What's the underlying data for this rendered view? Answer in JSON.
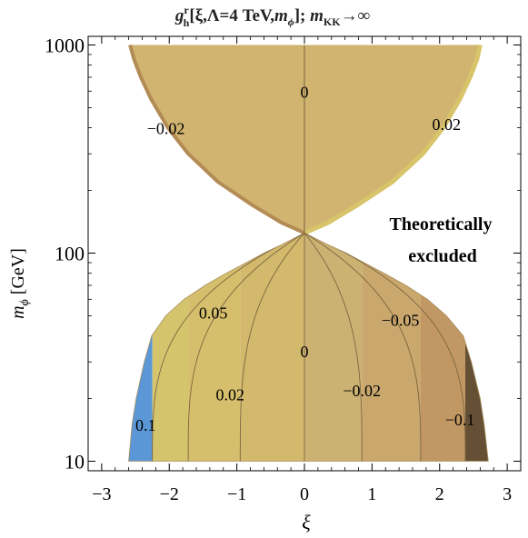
{
  "chart_data": {
    "type": "contour",
    "title": {
      "g": "g",
      "sup": "r",
      "sub": "h",
      "mid": "[ξ,Λ=4 TeV,",
      "m": "m",
      "phi": "ϕ",
      "end": "]; ",
      "m2": "m",
      "kk": "KK",
      "arrow": "→∞"
    },
    "xlabel": "ξ",
    "ylabel": {
      "m": "m",
      "sub": "ϕ",
      "unit": " [GeV]"
    },
    "x_ticks": [
      "−3",
      "−2",
      "−1",
      "0",
      "1",
      "2",
      "3"
    ],
    "y_ticks": [
      "10",
      "100",
      "1000"
    ],
    "xlim": [
      -3.2,
      3.2
    ],
    "ylim": [
      9,
      1100
    ],
    "y_scale": "log",
    "region_label": [
      "Theoretically",
      "excluded"
    ],
    "boundary_points": {
      "m": [
        10,
        15,
        20,
        30,
        40,
        50,
        60,
        70,
        80,
        90,
        100,
        110,
        125
      ],
      "xi_right": [
        2.72,
        2.66,
        2.6,
        2.47,
        2.35,
        2.1,
        1.82,
        1.5,
        1.18,
        0.88,
        0.62,
        0.34,
        0.0
      ],
      "xi_left": [
        -2.6,
        -2.55,
        -2.49,
        -2.37,
        -2.26,
        -2.05,
        -1.78,
        -1.47,
        -1.16,
        -0.86,
        -0.6,
        -0.33,
        0.0
      ],
      "m_upper": [
        125,
        140,
        170,
        220,
        300,
        400,
        550,
        700,
        850,
        1000
      ],
      "xi_upper_right": [
        0.0,
        0.35,
        0.78,
        1.3,
        1.75,
        2.05,
        2.3,
        2.45,
        2.55,
        2.6
      ],
      "xi_upper_left": [
        0.0,
        -0.34,
        -0.77,
        -1.28,
        -1.72,
        -2.02,
        -2.27,
        -2.42,
        -2.52,
        -2.58
      ]
    },
    "contour_bands": {
      "xi": [
        -2.6,
        -2.25,
        -1.72,
        -0.95,
        0.0,
        0.85,
        1.72,
        2.38,
        2.72
      ],
      "colors": [
        "#5b97d6",
        "#d4c56d",
        "#d6bf6c",
        "#d3b96c",
        "#ccb272",
        "#c9a76d",
        "#c19863",
        "#655036"
      ]
    },
    "contour_labels": [
      {
        "text": "0",
        "xi": 0.0,
        "m": 600
      },
      {
        "text": "−0.02",
        "xi": -2.05,
        "m": 400
      },
      {
        "text": "0.02",
        "xi": 2.1,
        "m": 420
      },
      {
        "text": "0.05",
        "xi": -1.35,
        "m": 52
      },
      {
        "text": "−0.05",
        "xi": 1.42,
        "m": 48
      },
      {
        "text": "0",
        "xi": 0.0,
        "m": 34
      },
      {
        "text": "0.02",
        "xi": -1.1,
        "m": 21
      },
      {
        "text": "−0.02",
        "xi": 0.85,
        "m": 22
      },
      {
        "text": "0.1",
        "xi": -2.35,
        "m": 15
      },
      {
        "text": "−0.1",
        "xi": 2.3,
        "m": 16
      }
    ],
    "grid": false,
    "legend": "none",
    "colors": {
      "upper_fill": "#d0b46f",
      "upper_edge_gold": "#d8c46a",
      "upper_edge_dark": "#b38b55",
      "contour_line": "#7c6540",
      "frame": "#000000"
    }
  }
}
